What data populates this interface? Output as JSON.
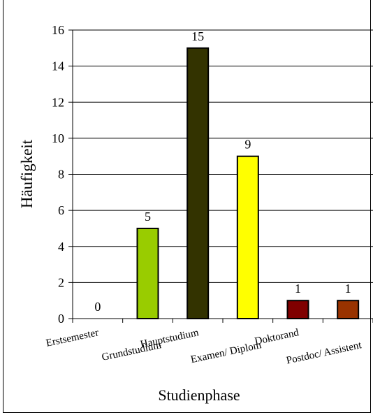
{
  "chart_data": {
    "type": "bar",
    "categories": [
      "Erstsemester",
      "Grundstudium",
      "Hauptstudium",
      "Examen/ Diplom",
      "Doktorand",
      "Postdoc/ Assistent"
    ],
    "values": [
      0,
      5,
      15,
      9,
      1,
      1
    ],
    "colors": [
      "#99cc00",
      "#99cc00",
      "#333300",
      "#ffff00",
      "#800000",
      "#993300"
    ],
    "xlabel": "Studienphase",
    "ylabel": "Häufigkeit",
    "ylim": [
      0,
      16
    ],
    "yticks": [
      "0",
      "2",
      "4",
      "6",
      "8",
      "10",
      "12",
      "14",
      "16"
    ],
    "data_labels": [
      "0",
      "5",
      "15",
      "9",
      "1",
      "1"
    ],
    "grid": true,
    "legend": "none"
  }
}
